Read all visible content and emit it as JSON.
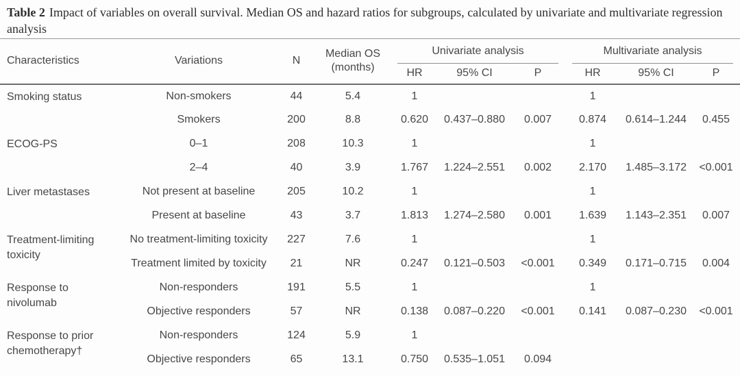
{
  "title": {
    "label": "Table 2",
    "text": "Impact of variables on overall survival. Median OS and hazard ratios for subgroups, calculated by univariate and multivariate regression analysis"
  },
  "table": {
    "header": {
      "characteristics": "Characteristics",
      "variations": "Variations",
      "n": "N",
      "median_os": "Median OS (months)",
      "univariate": "Univariate analysis",
      "multivariate": "Multivariate analysis",
      "hr": "HR",
      "ci": "95% CI",
      "p": "P"
    },
    "groups": [
      {
        "characteristic": "Smoking status",
        "rows": [
          {
            "variation": "Non-smokers",
            "n": "44",
            "median_os": "5.4",
            "uni_hr": "1",
            "uni_ci": "",
            "uni_p": "",
            "multi_hr": "1",
            "multi_ci": "",
            "multi_p": ""
          },
          {
            "variation": "Smokers",
            "n": "200",
            "median_os": "8.8",
            "uni_hr": "0.620",
            "uni_ci": "0.437–0.880",
            "uni_p": "0.007",
            "multi_hr": "0.874",
            "multi_ci": "0.614–1.244",
            "multi_p": "0.455"
          }
        ]
      },
      {
        "characteristic": "ECOG-PS",
        "rows": [
          {
            "variation": "0–1",
            "n": "208",
            "median_os": "10.3",
            "uni_hr": "1",
            "uni_ci": "",
            "uni_p": "",
            "multi_hr": "1",
            "multi_ci": "",
            "multi_p": ""
          },
          {
            "variation": "2–4",
            "n": "40",
            "median_os": "3.9",
            "uni_hr": "1.767",
            "uni_ci": "1.224–2.551",
            "uni_p": "0.002",
            "multi_hr": "2.170",
            "multi_ci": "1.485–3.172",
            "multi_p": "<0.001"
          }
        ]
      },
      {
        "characteristic": "Liver metastases",
        "rows": [
          {
            "variation": "Not present at baseline",
            "n": "205",
            "median_os": "10.2",
            "uni_hr": "1",
            "uni_ci": "",
            "uni_p": "",
            "multi_hr": "1",
            "multi_ci": "",
            "multi_p": ""
          },
          {
            "variation": "Present at baseline",
            "n": "43",
            "median_os": "3.7",
            "uni_hr": "1.813",
            "uni_ci": "1.274–2.580",
            "uni_p": "0.001",
            "multi_hr": "1.639",
            "multi_ci": "1.143–2.351",
            "multi_p": "0.007"
          }
        ]
      },
      {
        "characteristic": "Treatment-limiting toxicity",
        "rows": [
          {
            "variation": "No treatment-limiting toxicity",
            "n": "227",
            "median_os": "7.6",
            "uni_hr": "1",
            "uni_ci": "",
            "uni_p": "",
            "multi_hr": "1",
            "multi_ci": "",
            "multi_p": ""
          },
          {
            "variation": "Treatment limited by toxicity",
            "n": "21",
            "median_os": "NR",
            "uni_hr": "0.247",
            "uni_ci": "0.121–0.503",
            "uni_p": "<0.001",
            "multi_hr": "0.349",
            "multi_ci": "0.171–0.715",
            "multi_p": "0.004"
          }
        ]
      },
      {
        "characteristic": "Response to nivolumab",
        "rows": [
          {
            "variation": "Non-responders",
            "n": "191",
            "median_os": "5.5",
            "uni_hr": "1",
            "uni_ci": "",
            "uni_p": "",
            "multi_hr": "1",
            "multi_ci": "",
            "multi_p": ""
          },
          {
            "variation": "Objective responders",
            "n": "57",
            "median_os": "NR",
            "uni_hr": "0.138",
            "uni_ci": "0.087–0.220",
            "uni_p": "<0.001",
            "multi_hr": "0.141",
            "multi_ci": "0.087–0.230",
            "multi_p": "<0.001"
          }
        ]
      },
      {
        "characteristic": "Response to prior chemotherapy†",
        "rows": [
          {
            "variation": "Non-responders",
            "n": "124",
            "median_os": "5.9",
            "uni_hr": "1",
            "uni_ci": "",
            "uni_p": "",
            "multi_hr": "",
            "multi_ci": "",
            "multi_p": ""
          },
          {
            "variation": "Objective responders",
            "n": "65",
            "median_os": "13.1",
            "uni_hr": "0.750",
            "uni_ci": "0.535–1.051",
            "uni_p": "0.094",
            "multi_hr": "",
            "multi_ci": "",
            "multi_p": ""
          }
        ]
      }
    ]
  },
  "colors": {
    "background": "#fdfdfd",
    "text": "#474747",
    "title_text": "#2e2e2e",
    "rule_light": "#9a9a9a",
    "rule_dark": "#6e6e6e"
  }
}
